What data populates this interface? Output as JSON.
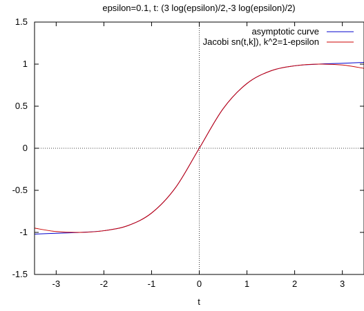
{
  "chart_data": {
    "type": "line",
    "title": "epsilon=0.1, t: (3 log(epsilon)/2,-3 log(epsilon)/2)",
    "xlabel": "t",
    "ylabel": "",
    "xlim": [
      -3.4539,
      3.4539
    ],
    "ylim": [
      -1.5,
      1.5
    ],
    "x_ticks": [
      -3,
      -2,
      -1,
      0,
      1,
      2,
      3
    ],
    "y_ticks": [
      -1.5,
      -1,
      -0.5,
      0,
      0.5,
      1,
      1.5
    ],
    "x_tick_labels": [
      "-3",
      "-2",
      "-1",
      "0",
      "1",
      "2",
      "3"
    ],
    "y_tick_labels": [
      "-1.5",
      "-1",
      "-0.5",
      "0",
      "0.5",
      "1",
      "1.5"
    ],
    "zero_axes": "dotted",
    "grid": false,
    "legend_position": "top-right",
    "series": [
      {
        "name": "asymptotic curve",
        "color": "#0000cc",
        "x": [
          -3.45,
          -3.0,
          -2.5,
          -2.0,
          -1.5,
          -1.0,
          -0.5,
          0.0,
          0.5,
          1.0,
          1.5,
          2.0,
          2.5,
          3.0,
          3.45
        ],
        "y": [
          -1.02,
          -1.01,
          -1.0,
          -0.98,
          -0.92,
          -0.77,
          -0.47,
          0.0,
          0.47,
          0.77,
          0.92,
          0.98,
          1.0,
          1.01,
          1.02
        ]
      },
      {
        "name": "Jacobi sn(t,k]), k^2=1-epsilon",
        "color": "#cc0000",
        "x": [
          -3.45,
          -3.0,
          -2.5,
          -2.0,
          -1.5,
          -1.0,
          -0.5,
          0.0,
          0.5,
          1.0,
          1.5,
          2.0,
          2.5,
          3.0,
          3.45
        ],
        "y": [
          -0.95,
          -0.99,
          -1.0,
          -0.98,
          -0.92,
          -0.77,
          -0.47,
          0.0,
          0.47,
          0.77,
          0.92,
          0.98,
          1.0,
          0.99,
          0.95
        ]
      }
    ]
  }
}
